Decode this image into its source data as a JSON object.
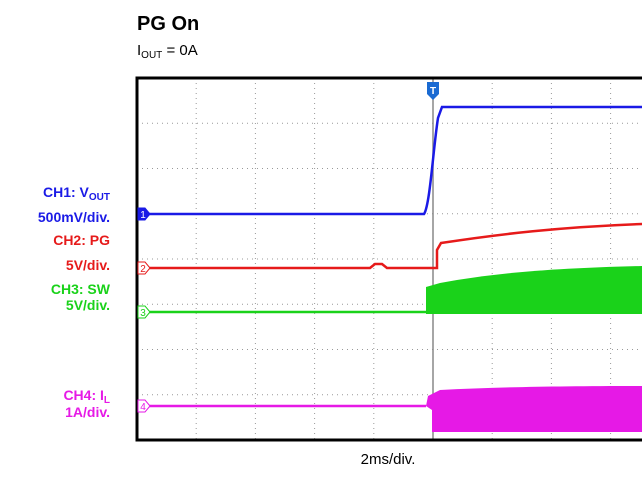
{
  "header": {
    "title": "PG On",
    "subtitle": {
      "text": "I",
      "sub": "OUT",
      "rest": " = 0A"
    }
  },
  "channels": [
    {
      "name": {
        "text": "CH1: V",
        "sub": "OUT"
      },
      "scale": "500mV/div.",
      "marker": "1",
      "color": "#1a1ae6"
    },
    {
      "name": {
        "text": "CH2: PG"
      },
      "scale": "5V/div.",
      "marker": "2",
      "color": "#e61a1a"
    },
    {
      "name": {
        "text": "CH3: SW"
      },
      "scale": "5V/div.",
      "marker": "3",
      "color": "#1ad21a"
    },
    {
      "name": {
        "text": "CH4: I",
        "sub": "L"
      },
      "scale": "1A/div.",
      "marker": "4",
      "color": "#e619e6"
    }
  ],
  "trigger_marker": "T",
  "timebase": "2ms/div."
}
